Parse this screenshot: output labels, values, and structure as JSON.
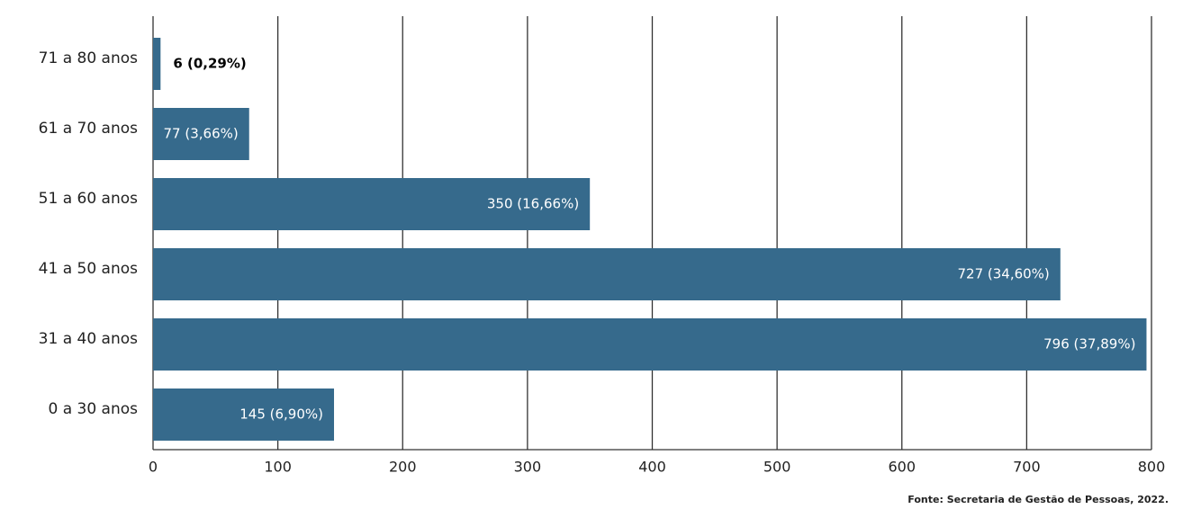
{
  "chart_data": {
    "type": "bar",
    "orientation": "horizontal",
    "categories": [
      "71 a 80 anos",
      "61 a 70 anos",
      "51 a 60 anos",
      "41 a 50 anos",
      "31 a 40 anos",
      "0 a 30 anos"
    ],
    "values": [
      6,
      77,
      350,
      727,
      796,
      145
    ],
    "value_labels": [
      "6 (0,29%)",
      "77 (3,66%)",
      "350 (16,66%)",
      "727 (34,60%)",
      "796 (37,89%)",
      "145 (6,90%)"
    ],
    "color": "#366a8c",
    "xlim": [
      0,
      800
    ],
    "xticks": [
      0,
      100,
      200,
      300,
      400,
      500,
      600,
      700,
      800
    ],
    "grid": true,
    "source": "Fonte: Secretaria de Gestão de Pessoas, 2022."
  }
}
